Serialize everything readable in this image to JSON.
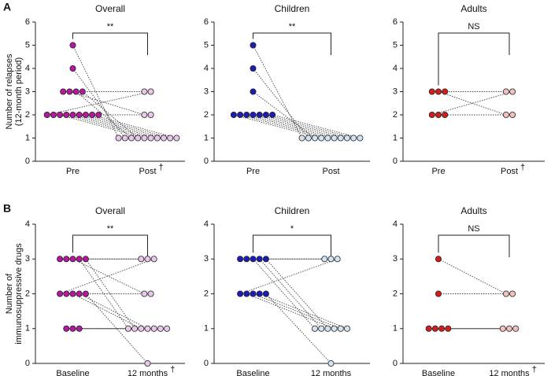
{
  "panel_labels": [
    "A",
    "B"
  ],
  "chart_data": [
    {
      "type": "paired-dot",
      "title": "Overall",
      "ylabel": [
        "Number of relapses",
        "(12-month period)"
      ],
      "categories": [
        "Pre",
        "Post"
      ],
      "category_marks": [
        null,
        "†"
      ],
      "annotation": "**",
      "colors": [
        "#b5179e",
        "#e9c6ea"
      ],
      "ylim": [
        0,
        6
      ],
      "yticks": [
        0,
        1,
        2,
        3,
        4,
        5,
        6
      ],
      "pairs": [
        [
          5,
          1
        ],
        [
          4,
          1
        ],
        [
          3,
          3
        ],
        [
          3,
          2
        ],
        [
          3,
          1
        ],
        [
          3,
          1
        ],
        [
          2,
          3
        ],
        [
          2,
          2
        ],
        [
          2,
          1
        ],
        [
          2,
          1
        ],
        [
          2,
          1
        ],
        [
          2,
          1
        ],
        [
          2,
          1
        ],
        [
          2,
          1
        ],
        [
          2,
          null
        ]
      ]
    },
    {
      "type": "paired-dot",
      "title": "Children",
      "categories": [
        "Pre",
        "Post"
      ],
      "annotation": "**",
      "colors": [
        "#1c1cb8",
        "#d3e3f1"
      ],
      "ylim": [
        0,
        6
      ],
      "yticks": [
        0,
        1,
        2,
        3,
        4,
        5,
        6
      ],
      "pairs": [
        [
          5,
          1
        ],
        [
          4,
          1
        ],
        [
          3,
          1
        ],
        [
          2,
          1
        ],
        [
          2,
          1
        ],
        [
          2,
          1
        ],
        [
          2,
          1
        ],
        [
          2,
          1
        ],
        [
          2,
          1
        ],
        [
          2,
          1
        ]
      ]
    },
    {
      "type": "paired-dot",
      "title": "Adults",
      "categories": [
        "Pre",
        "Post"
      ],
      "category_marks": [
        null,
        "†"
      ],
      "annotation": "NS",
      "colors": [
        "#d41c1c",
        "#f3c0c0"
      ],
      "ylim": [
        0,
        6
      ],
      "yticks": [
        0,
        1,
        2,
        3,
        4,
        5,
        6
      ],
      "pairs": [
        [
          3,
          3
        ],
        [
          3,
          2
        ],
        [
          3,
          null
        ],
        [
          2,
          3
        ],
        [
          2,
          2
        ],
        [
          2,
          null
        ]
      ]
    },
    {
      "type": "paired-dot",
      "title": "Overall",
      "ylabel": [
        "Number of",
        "immunosuppressive drugs"
      ],
      "categories": [
        "Baseline",
        "12 months"
      ],
      "category_marks": [
        null,
        "†"
      ],
      "annotation": "**",
      "colors": [
        "#b5179e",
        "#e9c6ea"
      ],
      "ylim": [
        0,
        4
      ],
      "yticks": [
        0,
        1,
        2,
        3,
        4
      ],
      "pairs": [
        [
          3,
          3
        ],
        [
          3,
          3
        ],
        [
          3,
          2
        ],
        [
          3,
          1
        ],
        [
          3,
          1
        ],
        [
          2,
          3
        ],
        [
          2,
          2
        ],
        [
          2,
          1
        ],
        [
          2,
          1
        ],
        [
          2,
          0
        ],
        [
          1,
          1
        ],
        [
          1,
          1
        ],
        [
          1,
          1
        ]
      ]
    },
    {
      "type": "paired-dot",
      "title": "Children",
      "categories": [
        "Baseline",
        "12 months"
      ],
      "annotation": "*",
      "colors": [
        "#1c1cb8",
        "#d3e3f1"
      ],
      "ylim": [
        0,
        4
      ],
      "yticks": [
        0,
        1,
        2,
        3,
        4
      ],
      "pairs": [
        [
          3,
          3
        ],
        [
          3,
          3
        ],
        [
          3,
          1
        ],
        [
          3,
          1
        ],
        [
          3,
          1
        ],
        [
          2,
          3
        ],
        [
          2,
          1
        ],
        [
          2,
          1
        ],
        [
          2,
          1
        ],
        [
          2,
          0
        ]
      ]
    },
    {
      "type": "paired-dot",
      "title": "Adults",
      "categories": [
        "Baseline",
        "12 months"
      ],
      "category_marks": [
        null,
        "†"
      ],
      "annotation": "NS",
      "colors": [
        "#d41c1c",
        "#f3c0c0"
      ],
      "ylim": [
        0,
        4
      ],
      "yticks": [
        0,
        1,
        2,
        3,
        4
      ],
      "pairs": [
        [
          3,
          2
        ],
        [
          2,
          2
        ],
        [
          1,
          1
        ],
        [
          1,
          1
        ],
        [
          1,
          1
        ],
        [
          1,
          null
        ]
      ]
    }
  ]
}
